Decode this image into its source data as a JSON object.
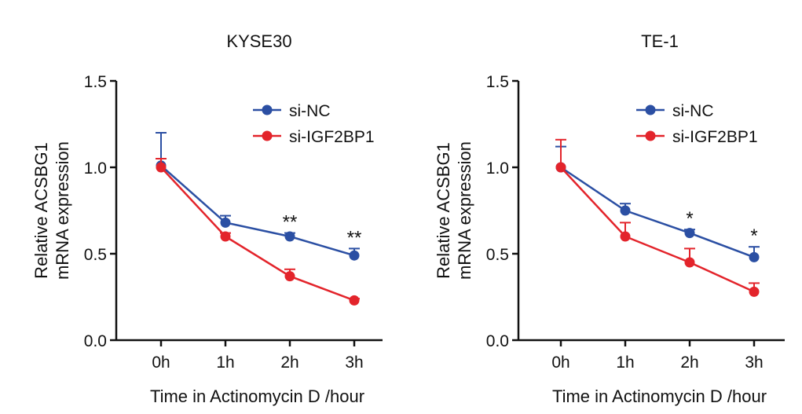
{
  "chart_data": [
    {
      "type": "line",
      "title": "KYSE30",
      "xlabel": "Time in Actinomycin D /hour",
      "ylabel": [
        "Relative ACSBG1",
        "mRNA expression"
      ],
      "categories": [
        "0h",
        "1h",
        "2h",
        "3h"
      ],
      "ylim": [
        0,
        1.5
      ],
      "yticks": [
        "0.0",
        "0.5",
        "1.0",
        "1.5"
      ],
      "legend_position": "top-right",
      "grid": false,
      "series": [
        {
          "name": "si-NC",
          "color": "#2b4fa3",
          "values": [
            1.01,
            0.68,
            0.6,
            0.49
          ],
          "errors": [
            0.19,
            0.04,
            0.02,
            0.04
          ]
        },
        {
          "name": "si-IGF2BP1",
          "color": "#e3242b",
          "values": [
            1.0,
            0.6,
            0.37,
            0.23
          ],
          "errors": [
            0.05,
            0.02,
            0.04,
            0.01
          ]
        }
      ],
      "annotations": [
        "",
        "",
        "**",
        "**"
      ]
    },
    {
      "type": "line",
      "title": "TE-1",
      "xlabel": "Time in Actinomycin D /hour",
      "ylabel": [
        "Relative ACSBG1",
        "mRNA expression"
      ],
      "categories": [
        "0h",
        "1h",
        "2h",
        "3h"
      ],
      "ylim": [
        0,
        1.5
      ],
      "yticks": [
        "0.0",
        "0.5",
        "1.0",
        "1.5"
      ],
      "legend_position": "top-right",
      "grid": false,
      "series": [
        {
          "name": "si-NC",
          "color": "#2b4fa3",
          "values": [
            1.0,
            0.75,
            0.62,
            0.48
          ],
          "errors": [
            0.12,
            0.04,
            0.02,
            0.06
          ]
        },
        {
          "name": "si-IGF2BP1",
          "color": "#e3242b",
          "values": [
            1.0,
            0.6,
            0.45,
            0.28
          ],
          "errors": [
            0.16,
            0.08,
            0.08,
            0.05
          ]
        }
      ],
      "annotations": [
        "",
        "",
        "*",
        "*"
      ]
    }
  ]
}
